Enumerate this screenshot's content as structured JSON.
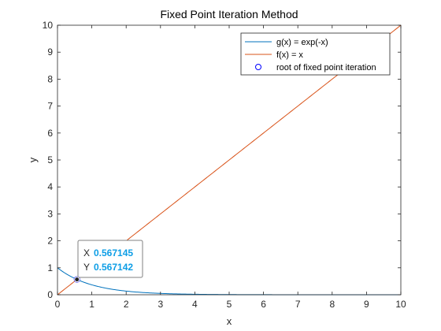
{
  "chart_data": {
    "type": "line",
    "title": "Fixed Point Iteration Method",
    "xlabel": "x",
    "ylabel": "y",
    "xlim": [
      0,
      10
    ],
    "ylim": [
      0,
      10
    ],
    "x_ticks": [
      0,
      1,
      2,
      3,
      4,
      5,
      6,
      7,
      8,
      9,
      10
    ],
    "y_ticks": [
      0,
      1,
      2,
      3,
      4,
      5,
      6,
      7,
      8,
      9,
      10
    ],
    "grid": false,
    "legend_position": "top-right",
    "series": [
      {
        "name": "g(x) = exp(-x)",
        "function": "exp(-x)",
        "color": "#0072bd",
        "style": "line"
      },
      {
        "name": "f(x) = x",
        "function": "x",
        "color": "#d95319",
        "style": "line"
      },
      {
        "name": "root of fixed point iteration",
        "x": [
          0.567145
        ],
        "y": [
          0.567142
        ],
        "color": "#0000ff",
        "style": "marker-circle"
      }
    ],
    "datatip": {
      "x_label": "X",
      "x_value": "0.567145",
      "y_label": "Y",
      "y_value": "0.567142",
      "x": 0.567145,
      "y": 0.567142
    }
  }
}
